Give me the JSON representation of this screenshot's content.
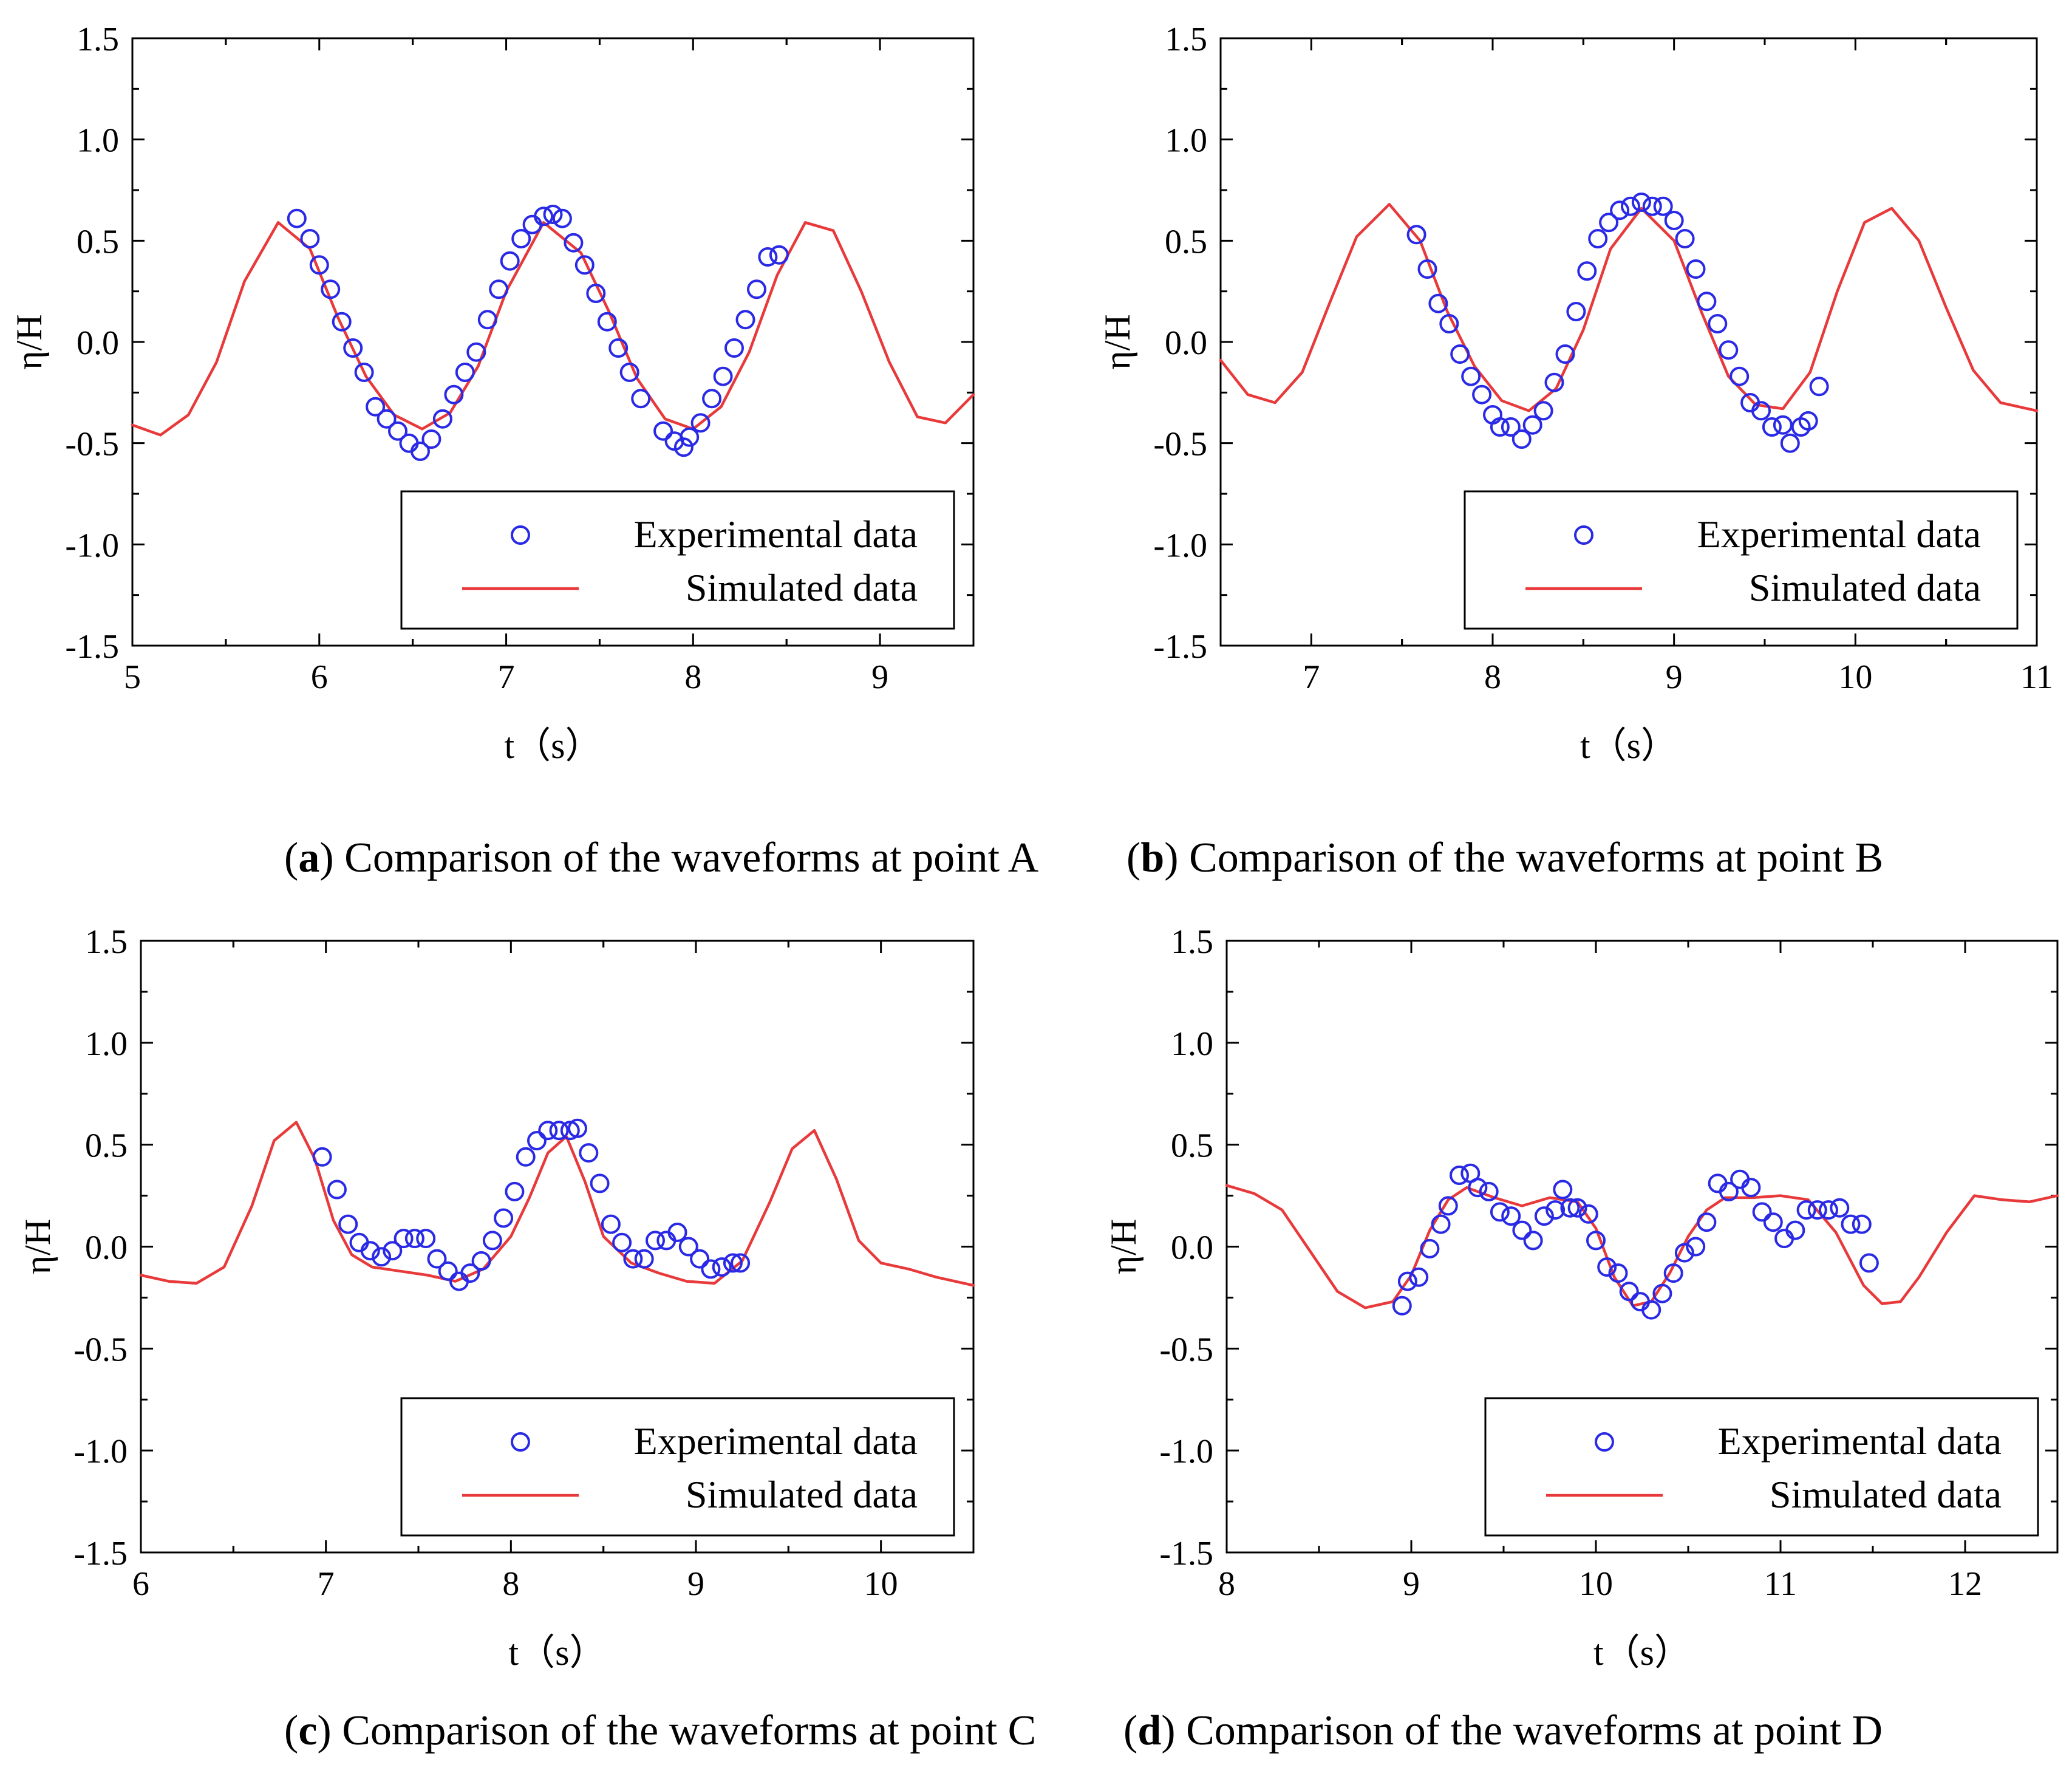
{
  "figure": {
    "captions": [
      {
        "letter": "a",
        "text": " Comparison of the waveforms at point A"
      },
      {
        "letter": "b",
        "text": " Comparison of the waveforms at point B"
      },
      {
        "letter": "c",
        "text": " Comparison of the waveforms at point C"
      },
      {
        "letter": "d",
        "text": " Comparison of the waveforms at point D"
      }
    ],
    "colors": {
      "experimental": "#2a2ae6",
      "simulated": "#e8393b",
      "axis": "#000000"
    }
  },
  "chart_data": [
    {
      "type": "line",
      "panel": "a",
      "title": "",
      "xlabel": "t（s）",
      "ylabel": "η/H",
      "xlim": [
        5,
        9.5
      ],
      "ylim": [
        -1.5,
        1.5
      ],
      "xticks": [
        5,
        6,
        7,
        8,
        9
      ],
      "yticks": [
        -1.5,
        -1.0,
        -0.5,
        0.0,
        0.5,
        1.0,
        1.5
      ],
      "ytick_labels": [
        "-1.5",
        "-1.0",
        "-0.5",
        "0.0",
        "0.5",
        "1.0",
        "1.5"
      ],
      "legend_position": "bottom-right",
      "series": [
        {
          "name": "Experimental data",
          "kind": "scatter",
          "x": [
            5.88,
            5.95,
            6.0,
            6.06,
            6.12,
            6.18,
            6.24,
            6.3,
            6.36,
            6.42,
            6.48,
            6.54,
            6.6,
            6.66,
            6.72,
            6.78,
            6.84,
            6.9,
            6.96,
            7.02,
            7.08,
            7.14,
            7.2,
            7.25,
            7.3,
            7.36,
            7.42,
            7.48,
            7.54,
            7.6,
            7.66,
            7.72,
            7.84,
            7.9,
            7.95,
            7.98,
            8.04,
            8.1,
            8.16,
            8.22,
            8.28,
            8.34,
            8.4,
            8.46
          ],
          "y": [
            0.61,
            0.51,
            0.38,
            0.26,
            0.1,
            -0.03,
            -0.15,
            -0.32,
            -0.38,
            -0.44,
            -0.5,
            -0.54,
            -0.48,
            -0.38,
            -0.26,
            -0.15,
            -0.05,
            0.11,
            0.26,
            0.4,
            0.51,
            0.58,
            0.62,
            0.63,
            0.61,
            0.49,
            0.38,
            0.24,
            0.1,
            -0.03,
            -0.15,
            -0.28,
            -0.44,
            -0.49,
            -0.52,
            -0.47,
            -0.4,
            -0.28,
            -0.17,
            -0.03,
            0.11,
            0.26,
            0.42,
            0.43
          ]
        },
        {
          "name": "Simulated data",
          "kind": "line",
          "x": [
            5.0,
            5.15,
            5.3,
            5.45,
            5.6,
            5.78,
            5.95,
            6.1,
            6.25,
            6.4,
            6.55,
            6.7,
            6.85,
            7.0,
            7.2,
            7.4,
            7.55,
            7.7,
            7.85,
            8.0,
            8.15,
            8.3,
            8.45,
            8.6,
            8.75,
            8.9,
            9.05,
            9.2,
            9.35,
            9.5
          ],
          "y": [
            -0.41,
            -0.46,
            -0.36,
            -0.1,
            0.3,
            0.59,
            0.46,
            0.12,
            -0.17,
            -0.36,
            -0.43,
            -0.35,
            -0.12,
            0.25,
            0.59,
            0.44,
            0.15,
            -0.18,
            -0.38,
            -0.43,
            -0.32,
            -0.05,
            0.33,
            0.59,
            0.55,
            0.25,
            -0.1,
            -0.37,
            -0.4,
            -0.26
          ]
        }
      ]
    },
    {
      "type": "line",
      "panel": "b",
      "title": "",
      "xlabel": "t（s）",
      "ylabel": "η/H",
      "xlim": [
        6.5,
        11
      ],
      "ylim": [
        -1.5,
        1.5
      ],
      "xticks": [
        7,
        8,
        9,
        10,
        11
      ],
      "yticks": [
        -1.5,
        -1.0,
        -0.5,
        0.0,
        0.5,
        1.0,
        1.5
      ],
      "ytick_labels": [
        "-1.5",
        "-1.0",
        "-0.5",
        "0.0",
        "0.5",
        "1.0",
        "1.5"
      ],
      "legend_position": "bottom-right",
      "series": [
        {
          "name": "Experimental data",
          "kind": "scatter",
          "x": [
            7.58,
            7.64,
            7.7,
            7.76,
            7.82,
            7.88,
            7.94,
            8.0,
            8.04,
            8.1,
            8.16,
            8.22,
            8.28,
            8.34,
            8.4,
            8.46,
            8.52,
            8.58,
            8.64,
            8.7,
            8.76,
            8.82,
            8.88,
            8.94,
            9.0,
            9.06,
            9.12,
            9.18,
            9.24,
            9.3,
            9.36,
            9.42,
            9.48,
            9.54,
            9.6,
            9.64,
            9.7,
            9.74,
            9.8
          ],
          "y": [
            0.53,
            0.36,
            0.19,
            0.09,
            -0.06,
            -0.17,
            -0.26,
            -0.36,
            -0.42,
            -0.42,
            -0.48,
            -0.41,
            -0.34,
            -0.2,
            -0.06,
            0.15,
            0.35,
            0.51,
            0.59,
            0.65,
            0.67,
            0.69,
            0.67,
            0.67,
            0.6,
            0.51,
            0.36,
            0.2,
            0.09,
            -0.04,
            -0.17,
            -0.3,
            -0.34,
            -0.42,
            -0.41,
            -0.5,
            -0.42,
            -0.39,
            -0.22
          ]
        },
        {
          "name": "Simulated data",
          "kind": "line",
          "x": [
            6.5,
            6.65,
            6.8,
            6.95,
            7.1,
            7.25,
            7.43,
            7.6,
            7.75,
            7.9,
            8.05,
            8.2,
            8.35,
            8.5,
            8.65,
            8.82,
            9.0,
            9.15,
            9.3,
            9.45,
            9.6,
            9.75,
            9.9,
            10.05,
            10.2,
            10.35,
            10.5,
            10.65,
            10.8,
            11.0
          ],
          "y": [
            -0.09,
            -0.26,
            -0.3,
            -0.15,
            0.19,
            0.52,
            0.68,
            0.5,
            0.15,
            -0.12,
            -0.29,
            -0.34,
            -0.23,
            0.06,
            0.46,
            0.66,
            0.5,
            0.15,
            -0.17,
            -0.31,
            -0.33,
            -0.15,
            0.25,
            0.59,
            0.66,
            0.5,
            0.17,
            -0.14,
            -0.3,
            -0.34
          ]
        }
      ]
    },
    {
      "type": "line",
      "panel": "c",
      "title": "",
      "xlabel": "t（s）",
      "ylabel": "η/H",
      "xlim": [
        6,
        10.5
      ],
      "ylim": [
        -1.5,
        1.5
      ],
      "xticks": [
        6,
        7,
        8,
        9,
        10
      ],
      "yticks": [
        -1.5,
        -1.0,
        -0.5,
        0.0,
        0.5,
        1.0,
        1.5
      ],
      "ytick_labels": [
        "-1.5",
        "-1.0",
        "-0.5",
        "0.0",
        "0.5",
        "1.0",
        "1.5"
      ],
      "legend_position": "bottom-right",
      "series": [
        {
          "name": "Experimental data",
          "kind": "scatter",
          "x": [
            6.98,
            7.06,
            7.12,
            7.18,
            7.24,
            7.3,
            7.36,
            7.42,
            7.48,
            7.54,
            7.6,
            7.66,
            7.72,
            7.78,
            7.84,
            7.9,
            7.96,
            8.02,
            8.08,
            8.14,
            8.2,
            8.26,
            8.32,
            8.36,
            8.42,
            8.48,
            8.54,
            8.6,
            8.66,
            8.72,
            8.78,
            8.84,
            8.9,
            8.96,
            9.02,
            9.08,
            9.14,
            9.2,
            9.24
          ],
          "y": [
            0.44,
            0.28,
            0.11,
            0.02,
            -0.02,
            -0.05,
            -0.02,
            0.04,
            0.04,
            0.04,
            -0.06,
            -0.12,
            -0.17,
            -0.13,
            -0.07,
            0.03,
            0.14,
            0.27,
            0.44,
            0.52,
            0.57,
            0.57,
            0.57,
            0.58,
            0.46,
            0.31,
            0.11,
            0.02,
            -0.06,
            -0.06,
            0.03,
            0.03,
            0.07,
            0.0,
            -0.06,
            -0.11,
            -0.1,
            -0.08,
            -0.08
          ]
        },
        {
          "name": "Simulated data",
          "kind": "line",
          "x": [
            6.0,
            6.15,
            6.3,
            6.45,
            6.6,
            6.72,
            6.84,
            6.94,
            7.04,
            7.14,
            7.25,
            7.4,
            7.55,
            7.7,
            7.85,
            8.0,
            8.1,
            8.2,
            8.3,
            8.4,
            8.5,
            8.65,
            8.8,
            8.95,
            9.1,
            9.25,
            9.4,
            9.52,
            9.64,
            9.76,
            9.88,
            10.0,
            10.15,
            10.3,
            10.5
          ],
          "y": [
            -0.14,
            -0.17,
            -0.18,
            -0.1,
            0.2,
            0.52,
            0.61,
            0.43,
            0.13,
            -0.04,
            -0.1,
            -0.12,
            -0.14,
            -0.17,
            -0.11,
            0.05,
            0.24,
            0.46,
            0.54,
            0.32,
            0.05,
            -0.08,
            -0.13,
            -0.17,
            -0.18,
            -0.07,
            0.22,
            0.48,
            0.57,
            0.33,
            0.03,
            -0.08,
            -0.11,
            -0.15,
            -0.19
          ]
        }
      ]
    },
    {
      "type": "line",
      "panel": "d",
      "title": "",
      "xlabel": "t（s）",
      "ylabel": "η/H",
      "xlim": [
        8,
        12.5
      ],
      "ylim": [
        -1.5,
        1.5
      ],
      "xticks": [
        8,
        9,
        10,
        11,
        12
      ],
      "yticks": [
        -1.5,
        -1.0,
        -0.5,
        0.0,
        0.5,
        1.0,
        1.5
      ],
      "ytick_labels": [
        "-1.5",
        "-1.0",
        "-0.5",
        "0.0",
        "0.5",
        "1.0",
        "1.5"
      ],
      "legend_position": "bottom-right",
      "series": [
        {
          "name": "Experimental data",
          "kind": "scatter",
          "x": [
            8.95,
            8.98,
            9.04,
            9.1,
            9.16,
            9.2,
            9.26,
            9.32,
            9.36,
            9.42,
            9.48,
            9.54,
            9.6,
            9.66,
            9.72,
            9.78,
            9.82,
            9.86,
            9.9,
            9.96,
            10.0,
            10.06,
            10.12,
            10.18,
            10.24,
            10.3,
            10.36,
            10.42,
            10.48,
            10.54,
            10.6,
            10.66,
            10.72,
            10.78,
            10.84,
            10.9,
            10.96,
            11.02,
            11.08,
            11.14,
            11.2,
            11.26,
            11.32,
            11.38,
            11.44,
            11.48
          ],
          "y": [
            -0.29,
            -0.17,
            -0.15,
            -0.01,
            0.11,
            0.2,
            0.35,
            0.36,
            0.29,
            0.27,
            0.17,
            0.15,
            0.08,
            0.03,
            0.15,
            0.18,
            0.28,
            0.19,
            0.19,
            0.16,
            0.03,
            -0.1,
            -0.13,
            -0.22,
            -0.27,
            -0.31,
            -0.23,
            -0.13,
            -0.03,
            0.0,
            0.12,
            0.31,
            0.27,
            0.33,
            0.29,
            0.17,
            0.12,
            0.04,
            0.08,
            0.18,
            0.18,
            0.18,
            0.19,
            0.11,
            0.11,
            -0.08
          ]
        },
        {
          "name": "Simulated data",
          "kind": "line",
          "x": [
            8.0,
            8.15,
            8.3,
            8.45,
            8.6,
            8.75,
            8.9,
            9.0,
            9.1,
            9.2,
            9.3,
            9.45,
            9.6,
            9.75,
            9.9,
            10.0,
            10.1,
            10.2,
            10.3,
            10.4,
            10.5,
            10.6,
            10.7,
            10.85,
            11.0,
            11.15,
            11.3,
            11.45,
            11.55,
            11.65,
            11.75,
            11.9,
            12.05,
            12.2,
            12.35,
            12.5
          ],
          "y": [
            0.3,
            0.26,
            0.18,
            -0.02,
            -0.22,
            -0.3,
            -0.27,
            -0.14,
            0.08,
            0.23,
            0.29,
            0.24,
            0.2,
            0.24,
            0.22,
            0.09,
            -0.15,
            -0.29,
            -0.27,
            -0.13,
            0.05,
            0.18,
            0.24,
            0.24,
            0.25,
            0.23,
            0.07,
            -0.19,
            -0.28,
            -0.27,
            -0.15,
            0.07,
            0.25,
            0.23,
            0.22,
            0.25
          ]
        }
      ]
    }
  ]
}
